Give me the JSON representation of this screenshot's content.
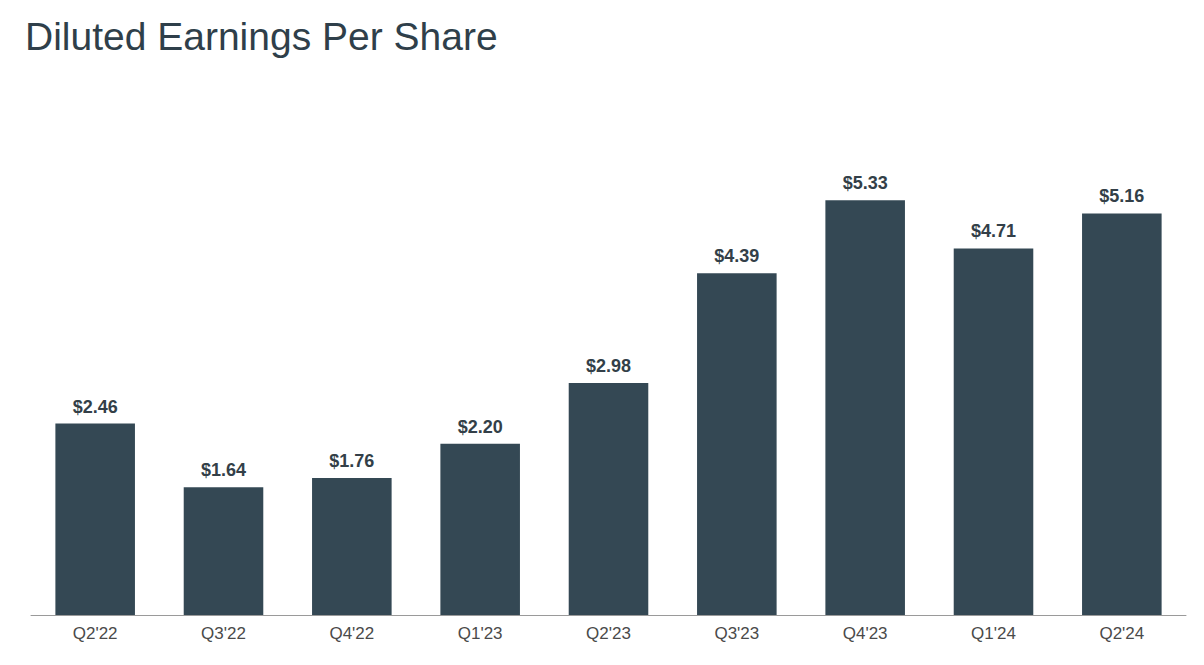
{
  "chart_data": {
    "type": "bar",
    "title": "Diluted Earnings Per Share",
    "categories": [
      "Q2'22",
      "Q3'22",
      "Q4'22",
      "Q1'23",
      "Q2'23",
      "Q3'23",
      "Q4'23",
      "Q1'24",
      "Q2'24"
    ],
    "values": [
      2.46,
      1.64,
      1.76,
      2.2,
      2.98,
      4.39,
      5.33,
      4.71,
      5.16
    ],
    "value_labels": [
      "$2.46",
      "$1.64",
      "$1.76",
      "$2.20",
      "$2.98",
      "$4.39",
      "$5.33",
      "$4.71",
      "$5.16"
    ],
    "color": "#344854",
    "ylim": [
      0,
      6
    ],
    "yticks": [
      0,
      6
    ],
    "grid": false,
    "data_labels": true,
    "tick_labels": "x"
  }
}
